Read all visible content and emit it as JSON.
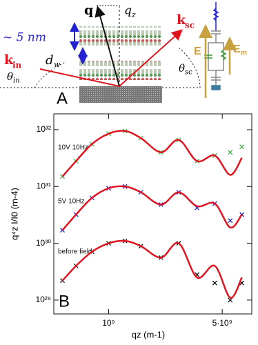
{
  "diagram": {
    "panel": "A",
    "q": "q",
    "qz": {
      "main": "q",
      "sub": "z"
    },
    "k_sc": {
      "main": "k",
      "sub": "sc"
    },
    "k_in": {
      "main": "k",
      "sub": "in"
    },
    "thickness": "~ 5 nm",
    "d_w": {
      "main": "d",
      "sub": "w"
    },
    "theta_in": {
      "main": "θ",
      "sub": "in"
    },
    "theta_sc": {
      "main": "θ",
      "sub": "sc"
    },
    "E": "E",
    "E_m": {
      "main": "E",
      "sub": "m"
    }
  },
  "chart_data": {
    "type": "line",
    "panel": "B",
    "x_label": "qz (m-1)",
    "y_label": "q⁴z I/I0 (m-4)",
    "x_log": true,
    "y_log": true,
    "xlim": [
      460000000.0,
      7600000000.0
    ],
    "ylim": [
      5.7e+28,
      1.9e+32
    ],
    "xticks": [
      {
        "value": 1000000000.0,
        "label": "10⁹"
      },
      {
        "value": 5000000000.0,
        "label": "5·10⁹"
      }
    ],
    "yticks": [
      {
        "value": 1e+29,
        "label": "10²⁹"
      },
      {
        "value": 1e+30,
        "label": "10³⁰"
      },
      {
        "value": 1e+31,
        "label": "10³¹"
      },
      {
        "value": 1e+32,
        "label": "10³²"
      }
    ],
    "x": [
      520000000.0,
      630000000.0,
      790000000.0,
      1000000000.0,
      1260000000.0,
      1580000000.0,
      2100000000.0,
      2700000000.0,
      3500000000.0,
      4500000000.0,
      5600000000.0,
      6600000000.0
    ],
    "series": [
      {
        "name": "10V 10Hz",
        "color": "#3cb043",
        "style": "markers",
        "values": [
          1.5e+31,
          2.8e+31,
          5.6e+31,
          8.5e+31,
          9.5e+31,
          7.1e+31,
          4e+31,
          6.6e+31,
          2.8e+31,
          3.5e+31,
          4e+31,
          5e+31
        ]
      },
      {
        "name": "5V 10Hz",
        "color": "#2222d0",
        "style": "markers",
        "values": [
          1.7e+30,
          3.2e+30,
          6.3e+30,
          9.3e+30,
          1e+31,
          7.9e+30,
          4.8e+30,
          7.9e+30,
          4.2e+30,
          5e+30,
          2.5e+30,
          3.2e+30
        ]
      },
      {
        "name": "before field",
        "color": "#111111",
        "style": "markers",
        "values": [
          2.2e+29,
          4e+29,
          7.1e+29,
          1e+30,
          1.1e+30,
          8.9e+29,
          5.6e+29,
          1e+30,
          2.8e+29,
          2e+29,
          1e+29,
          2e+29
        ]
      },
      {
        "color": "#e0141e",
        "style": "line",
        "values": [
          1.5e+31,
          2.8e+31,
          5.6e+31,
          8.5e+31,
          9.5e+31,
          7.1e+31,
          4e+31,
          6.6e+31,
          2.8e+31,
          3.5e+31,
          1.6e+31,
          3.2e+31
        ]
      },
      {
        "color": "#e0141e",
        "style": "line",
        "values": [
          1.7e+30,
          3.2e+30,
          6.3e+30,
          9.3e+30,
          1e+31,
          7.9e+30,
          4.8e+30,
          7.9e+30,
          4.5e+30,
          5e+30,
          1.9e+30,
          3.2e+30
        ]
      },
      {
        "color": "#e0141e",
        "style": "line",
        "values": [
          2.2e+29,
          4e+29,
          7.1e+29,
          1e+30,
          1.1e+30,
          8.9e+29,
          5.6e+29,
          1e+30,
          2.5e+29,
          4e+29,
          1.1e+29,
          2.5e+29
        ]
      }
    ]
  }
}
